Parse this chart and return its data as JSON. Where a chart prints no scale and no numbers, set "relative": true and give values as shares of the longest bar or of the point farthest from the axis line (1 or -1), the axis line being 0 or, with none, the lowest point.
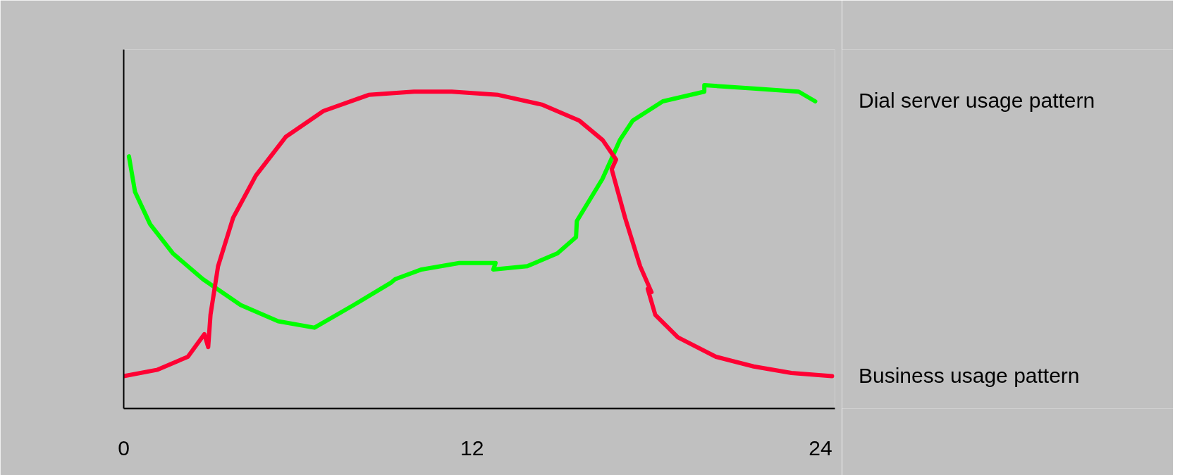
{
  "chart_data": {
    "type": "line",
    "relative": true,
    "xlim": [
      0,
      24.5
    ],
    "xticks": [
      0,
      12,
      24
    ],
    "grid": false,
    "marker": "none",
    "line_style": "solid",
    "series": [
      {
        "name": "Dial server usage pattern",
        "color": "#00ff00",
        "x": [
          0.18,
          0.39,
          0.91,
          1.69,
          2.73,
          4.03,
          5.32,
          6.57,
          7.92,
          9.22,
          9.35,
          10.26,
          11.56,
          12.81,
          12.73,
          13.9,
          14.94,
          15.58,
          15.61,
          16.49,
          17.09,
          17.53,
          18.57,
          20.0,
          20.0,
          21.69,
          23.25,
          23.82
        ],
        "values": [
          0.78,
          0.67,
          0.57,
          0.48,
          0.4,
          0.32,
          0.27,
          0.25,
          0.32,
          0.39,
          0.4,
          0.43,
          0.45,
          0.45,
          0.43,
          0.44,
          0.48,
          0.53,
          0.58,
          0.71,
          0.83,
          0.89,
          0.95,
          0.98,
          1.0,
          0.99,
          0.98,
          0.95
        ]
      },
      {
        "name": "Business usage pattern",
        "color": "#ff0033",
        "x": [
          0,
          1.17,
          2.21,
          2.78,
          2.91,
          2.99,
          3.25,
          3.77,
          4.55,
          5.58,
          6.88,
          8.44,
          10.0,
          11.3,
          12.9,
          14.4,
          15.7,
          16.5,
          16.96,
          16.81,
          17.27,
          17.79,
          18.18,
          18.05,
          18.31,
          19.09,
          20.4,
          21.7,
          23.0,
          24.4
        ],
        "values": [
          0.1,
          0.12,
          0.16,
          0.23,
          0.19,
          0.29,
          0.44,
          0.59,
          0.72,
          0.84,
          0.92,
          0.97,
          0.98,
          0.98,
          0.97,
          0.94,
          0.89,
          0.83,
          0.77,
          0.74,
          0.59,
          0.44,
          0.36,
          0.37,
          0.29,
          0.22,
          0.16,
          0.13,
          0.11,
          0.1
        ]
      }
    ]
  }
}
